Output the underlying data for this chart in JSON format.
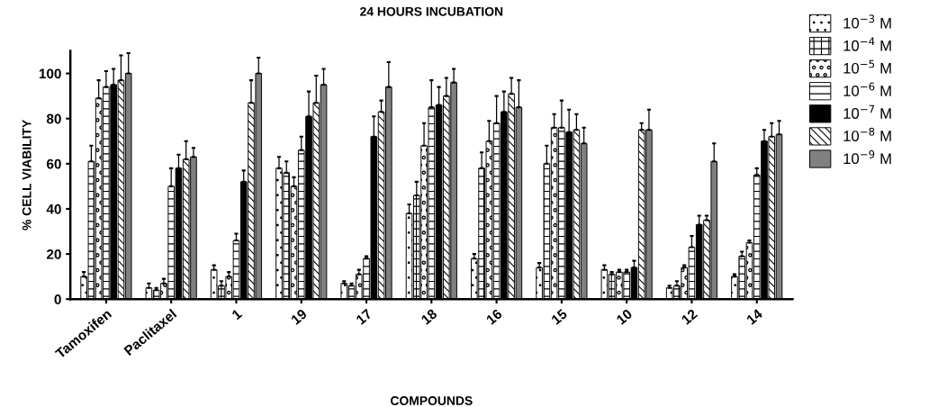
{
  "chart_data": {
    "type": "bar",
    "title": "24 HOURS INCUBATION",
    "xlabel": "COMPOUNDS",
    "ylabel": "% CELL VIABILITY",
    "categories": [
      "Tamoxifen",
      "Paclitaxel",
      "1",
      "19",
      "17",
      "18",
      "16",
      "15",
      "10",
      "12",
      "14"
    ],
    "ylim": [
      0,
      110
    ],
    "yticks": [
      0,
      20,
      40,
      60,
      80,
      100
    ],
    "grid": false,
    "legend": "top right",
    "series": [
      {
        "name": "10$^{−3}$ M",
        "color": "#000000",
        "values": [
          10,
          5,
          13,
          58,
          7,
          38,
          18,
          14,
          13,
          5,
          10
        ],
        "errors": [
          [
            10,
            12
          ],
          [
            5,
            7
          ],
          [
            13,
            15
          ],
          [
            58,
            63
          ],
          [
            7,
            8
          ],
          [
            38,
            42
          ],
          [
            18,
            20
          ],
          [
            14,
            16
          ],
          [
            13,
            15
          ],
          [
            5,
            6
          ],
          [
            10,
            11
          ]
        ]
      },
      {
        "name": "10$^{−4}$ M",
        "color": "#000000",
        "values": [
          61,
          4,
          6,
          56,
          6,
          46,
          58,
          60,
          11,
          6,
          19
        ],
        "errors": [
          [
            61,
            68
          ],
          [
            4,
            5
          ],
          [
            6,
            8
          ],
          [
            56,
            61
          ],
          [
            6,
            7
          ],
          [
            46,
            52
          ],
          [
            58,
            65
          ],
          [
            60,
            68
          ],
          [
            11,
            12
          ],
          [
            6,
            8
          ],
          [
            19,
            21
          ]
        ]
      },
      {
        "name": "10$^{−5}$ M",
        "color": "#000000",
        "values": [
          89,
          7,
          10,
          50,
          11,
          68,
          70,
          76,
          12,
          14,
          25
        ],
        "errors": [
          [
            89,
            97
          ],
          [
            7,
            9
          ],
          [
            10,
            12
          ],
          [
            50,
            54
          ],
          [
            11,
            13
          ],
          [
            68,
            78
          ],
          [
            70,
            79
          ],
          [
            76,
            82
          ],
          [
            12,
            13
          ],
          [
            14,
            15
          ],
          [
            25,
            26
          ]
        ]
      },
      {
        "name": "10$^{−6}$ M",
        "color": "#000000",
        "values": [
          94,
          50,
          26,
          66,
          18,
          85,
          78,
          76,
          12,
          23,
          55
        ],
        "errors": [
          [
            94,
            101
          ],
          [
            50,
            58
          ],
          [
            26,
            29
          ],
          [
            66,
            72
          ],
          [
            18,
            19
          ],
          [
            85,
            97
          ],
          [
            78,
            90
          ],
          [
            76,
            88
          ],
          [
            12,
            13
          ],
          [
            23,
            28
          ],
          [
            55,
            58
          ]
        ]
      },
      {
        "name": "10$^{−7}$ M",
        "color": "#000000",
        "values": [
          95,
          58,
          52,
          81,
          72,
          86,
          83,
          74,
          14,
          33,
          70
        ],
        "errors": [
          [
            95,
            102
          ],
          [
            58,
            64
          ],
          [
            52,
            57
          ],
          [
            81,
            92
          ],
          [
            72,
            81
          ],
          [
            86,
            94
          ],
          [
            83,
            92
          ],
          [
            74,
            84
          ],
          [
            14,
            17
          ],
          [
            33,
            37
          ],
          [
            70,
            75
          ]
        ]
      },
      {
        "name": "10$^{−8}$ M",
        "color": "#000000",
        "values": [
          97,
          62,
          87,
          87,
          83,
          90,
          91,
          75,
          75,
          35,
          72
        ],
        "errors": [
          [
            97,
            108
          ],
          [
            62,
            70
          ],
          [
            87,
            97
          ],
          [
            87,
            99
          ],
          [
            83,
            88
          ],
          [
            90,
            98
          ],
          [
            91,
            98
          ],
          [
            75,
            82
          ],
          [
            75,
            78
          ],
          [
            35,
            37
          ],
          [
            72,
            78
          ]
        ]
      },
      {
        "name": "10$^{−9}$ M",
        "color": "#808080",
        "values": [
          100,
          63,
          100,
          95,
          94,
          96,
          85,
          69,
          75,
          61,
          73
        ],
        "errors": [
          [
            100,
            109
          ],
          [
            63,
            67
          ],
          [
            100,
            107
          ],
          [
            95,
            102
          ],
          [
            94,
            105
          ],
          [
            96,
            102
          ],
          [
            85,
            97
          ],
          [
            69,
            76
          ],
          [
            75,
            84
          ],
          [
            61,
            69
          ],
          [
            73,
            79
          ]
        ]
      }
    ]
  }
}
